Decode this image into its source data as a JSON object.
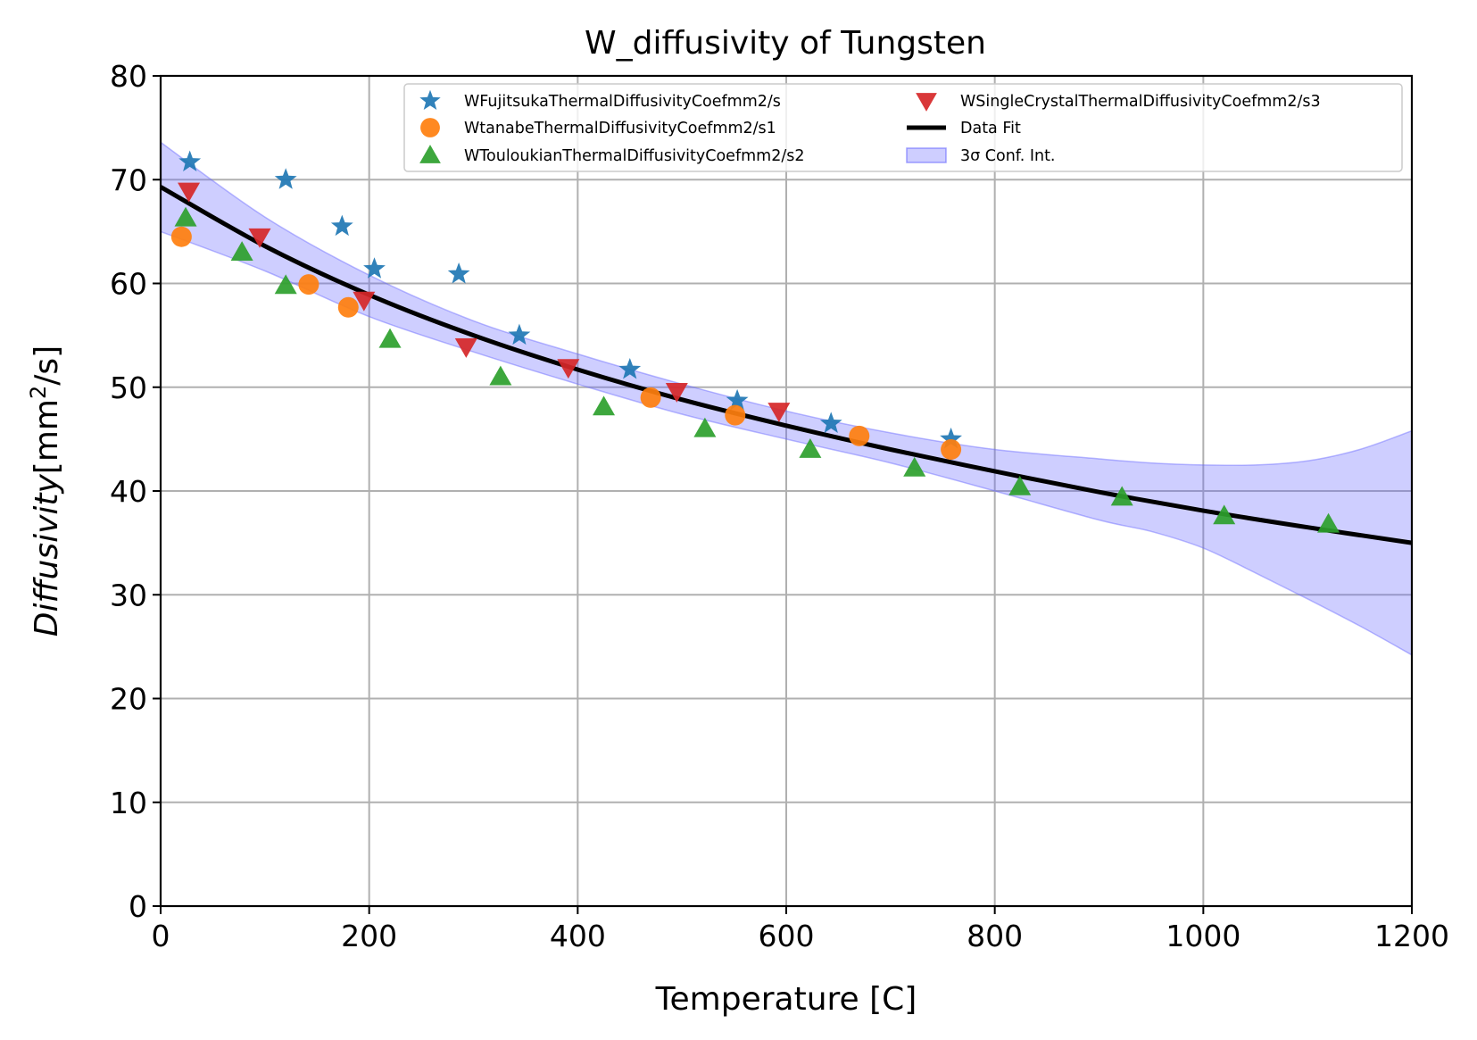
{
  "chart_data": {
    "type": "scatter",
    "title": "W_diffusivity of Tungsten",
    "xlabel": "Temperature [C]",
    "ylabel": {
      "italic": "Diffusivity",
      "prefix": "[mm",
      "sup": "2",
      "suffix": "/s]"
    },
    "xlim": [
      0,
      1200
    ],
    "ylim": [
      0,
      80
    ],
    "xticks": [
      0,
      200,
      400,
      600,
      800,
      1000,
      1200
    ],
    "yticks": [
      0,
      10,
      20,
      30,
      40,
      50,
      60,
      70,
      80
    ],
    "xtick_labels": [
      "0",
      "200",
      "400",
      "600",
      "800",
      "1000",
      "1200"
    ],
    "ytick_labels": [
      "0",
      "10",
      "20",
      "30",
      "40",
      "50",
      "60",
      "70",
      "80"
    ],
    "grid": true,
    "legend_position": "top-right",
    "series": [
      {
        "name": "WFujitsukaThermalDiffusivityCoefmm2/s",
        "marker": "star",
        "color": "#1f77b4",
        "x": [
          28,
          120,
          174,
          205,
          286,
          344,
          450,
          553,
          643,
          758
        ],
        "y": [
          71.7,
          70.0,
          65.5,
          61.4,
          60.9,
          55.0,
          51.7,
          48.7,
          46.5,
          45.0
        ]
      },
      {
        "name": "WtanabeThermalDiffusivityCoefmm2/s1",
        "marker": "circle",
        "color": "#ff7f0e",
        "x": [
          20,
          142,
          180,
          470,
          551,
          670,
          758
        ],
        "y": [
          64.5,
          59.9,
          57.7,
          49.0,
          47.3,
          45.3,
          44.0
        ]
      },
      {
        "name": "WTouloukianThermalDiffusivityCoefmm2/s2",
        "marker": "triangle-up",
        "color": "#2ca02c",
        "x": [
          24,
          78,
          120,
          220,
          326,
          425,
          522,
          623,
          723,
          824,
          922,
          1020,
          1120
        ],
        "y": [
          66.3,
          63.0,
          59.8,
          54.6,
          51.0,
          48.1,
          46.0,
          44.0,
          42.2,
          40.4,
          39.4,
          37.6,
          36.8
        ]
      },
      {
        "name": "WSingleCrystalThermalDiffusivityCoefmm2/s3",
        "marker": "triangle-down",
        "color": "#d62728",
        "x": [
          27,
          95,
          195,
          293,
          391,
          495,
          593
        ],
        "y": [
          68.9,
          64.5,
          58.4,
          53.9,
          51.9,
          49.6,
          47.7
        ]
      }
    ],
    "fit": {
      "name": "Data Fit",
      "color": "#000000",
      "x": [
        0,
        100,
        200,
        300,
        400,
        500,
        600,
        700,
        800,
        900,
        1000,
        1100,
        1200
      ],
      "y": [
        69.3,
        63.6,
        58.9,
        55.0,
        51.7,
        48.8,
        46.3,
        44.0,
        41.9,
        39.9,
        38.1,
        36.5,
        35.0
      ]
    },
    "confidence_band": {
      "name": "3σ Conf. Int.",
      "color": "#6666ff",
      "x": [
        0,
        100,
        200,
        300,
        400,
        500,
        600,
        700,
        800,
        900,
        950,
        1000,
        1050,
        1100,
        1150,
        1200
      ],
      "upper": [
        73.6,
        66.4,
        60.8,
        56.4,
        53.2,
        50.3,
        47.7,
        45.6,
        44.0,
        43.1,
        42.7,
        42.5,
        42.5,
        42.9,
        44.0,
        45.8
      ],
      "lower": [
        65.0,
        61.2,
        56.8,
        53.4,
        50.3,
        47.4,
        45.0,
        42.7,
        40.0,
        37.2,
        36.1,
        34.5,
        32.1,
        29.6,
        27.0,
        24.2
      ]
    }
  }
}
